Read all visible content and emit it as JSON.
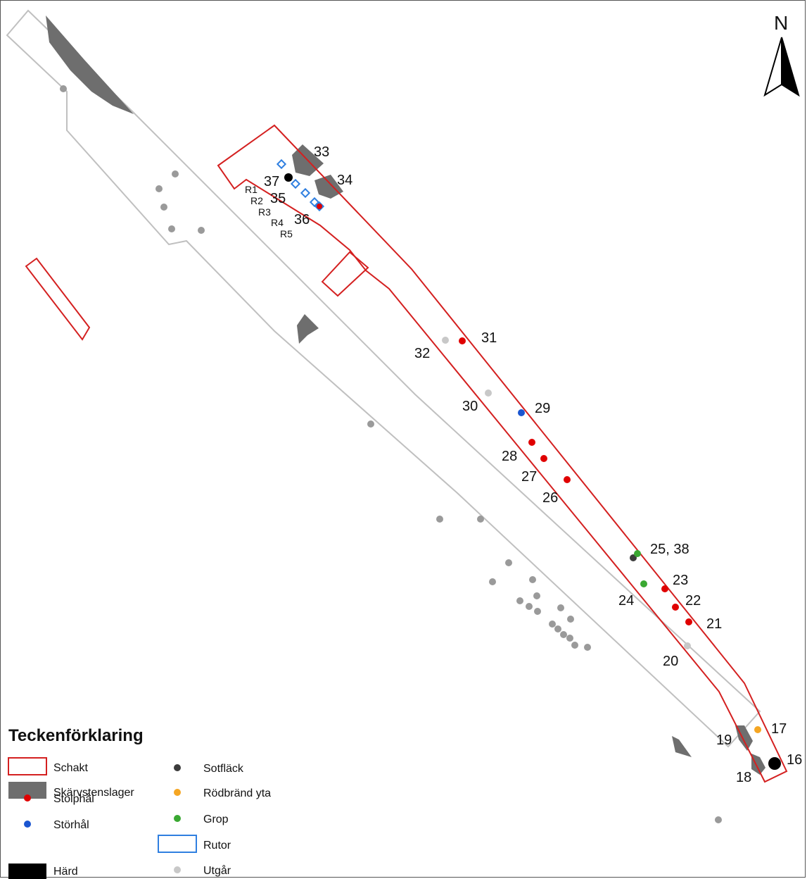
{
  "map": {
    "north_label": "N",
    "colors": {
      "schakt": "#d42020",
      "baseline": "#c0c0c0",
      "skarvsten": "#6e6e6e",
      "stolphal": "#e00000",
      "storhal": "#1a55d0",
      "hard": "#000000",
      "sotflack": "#3c3c3c",
      "rodbrand": "#f5a623",
      "grop": "#3aa832",
      "rutor": "#2f7fe0",
      "utgar": "#c8c8c8",
      "undefined_gray": "#9a9a9a"
    },
    "feature_labels": {
      "l16": "16",
      "l17": "17",
      "l18": "18",
      "l19": "19",
      "l20": "20",
      "l21": "21",
      "l22": "22",
      "l23": "23",
      "l24": "24",
      "l25": "25, 38",
      "l26": "26",
      "l27": "27",
      "l28": "28",
      "l29": "29",
      "l30": "30",
      "l31": "31",
      "l32": "32",
      "l33": "33",
      "l34": "34",
      "l35": "35",
      "l36": "36",
      "l37": "37",
      "r1": "R1",
      "r2": "R2",
      "r3": "R3",
      "r4": "R4",
      "r5": "R5"
    }
  },
  "legend": {
    "title": "Teckenförklaring",
    "items": {
      "schakt": "Schakt",
      "skarvstenslager": "Skärvstenslager",
      "stolphal": "Stolphål",
      "storhal": "Störhål",
      "hard": "Härd",
      "sotflack": "Sotfläck",
      "rodbrand_yta": "Rödbränd yta",
      "grop": "Grop",
      "rutor": "Rutor",
      "utgar": "Utgår"
    }
  }
}
